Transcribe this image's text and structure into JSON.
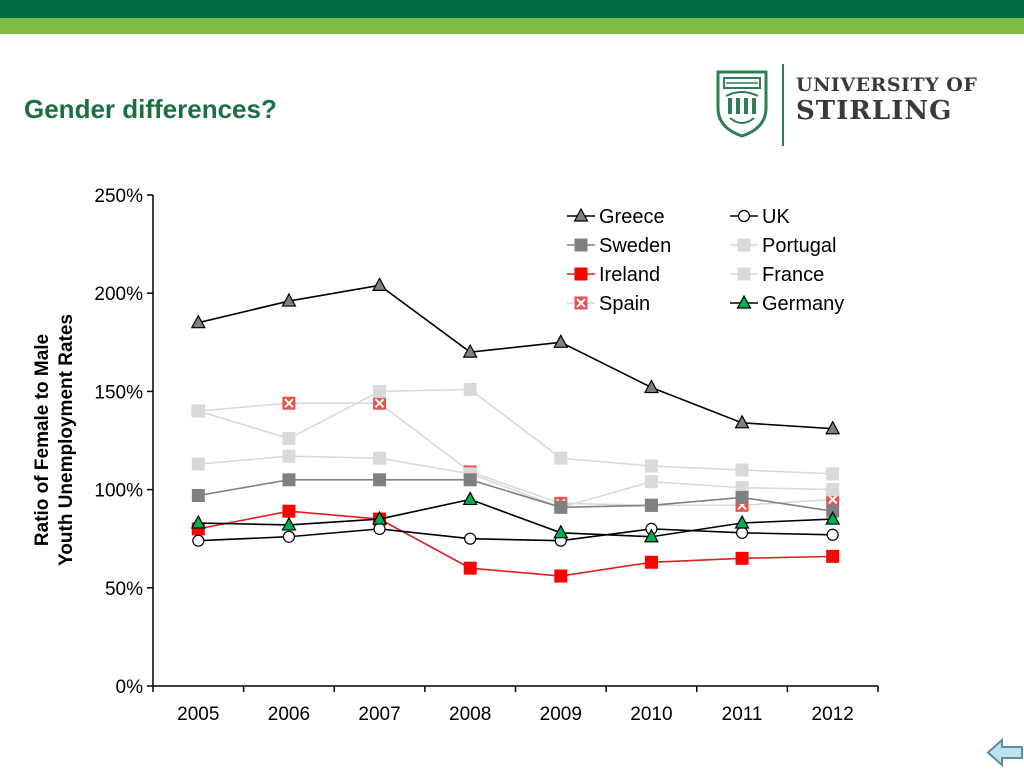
{
  "header": {
    "title": "Gender differences?",
    "colors": {
      "band_dark": "#006a43",
      "band_light": "#7dbb42",
      "title": "#1b7040"
    }
  },
  "logo": {
    "line1": "UNIVERSITY OF",
    "line2": "STIRLING",
    "crest_icon": "university-crest-icon"
  },
  "chart_data": {
    "type": "line",
    "title": "",
    "xlabel": "",
    "ylabel": "Ratio of Female to Male Youth Unemployment Rates",
    "ylim": [
      0,
      250
    ],
    "yticks": [
      "0%",
      "50%",
      "100%",
      "150%",
      "200%",
      "250%"
    ],
    "categories": [
      "2005",
      "2006",
      "2007",
      "2008",
      "2009",
      "2010",
      "2011",
      "2012"
    ],
    "grid": false,
    "legend_position": "top-right",
    "series": [
      {
        "name": "Greece",
        "color": "#000000",
        "marker": "triangle",
        "fill": "#808080",
        "values": [
          185,
          196,
          204,
          170,
          175,
          152,
          134,
          131
        ]
      },
      {
        "name": "Sweden",
        "color": "#808080",
        "marker": "square",
        "fill": "#808080",
        "values": [
          97,
          105,
          105,
          105,
          91,
          92,
          96,
          89
        ]
      },
      {
        "name": "Ireland",
        "color": "#e31e24",
        "marker": "square",
        "fill": "#ff0000",
        "values": [
          80,
          89,
          85,
          60,
          56,
          63,
          65,
          66
        ]
      },
      {
        "name": "Spain",
        "color": "#d9d9d9",
        "marker": "x-square",
        "fill": "#e8524f",
        "values": [
          140,
          144,
          144,
          109,
          93,
          92,
          92,
          95
        ]
      },
      {
        "name": "UK",
        "color": "#000000",
        "marker": "circle",
        "fill": "#ffffff",
        "values": [
          74,
          76,
          80,
          75,
          74,
          80,
          78,
          77
        ]
      },
      {
        "name": "Portugal",
        "color": "#d9d9d9",
        "marker": "square",
        "fill": "#d9d9d9",
        "values": [
          140,
          126,
          150,
          151,
          116,
          112,
          110,
          108
        ]
      },
      {
        "name": "France",
        "color": "#d9d9d9",
        "marker": "square",
        "fill": "#d9d9d9",
        "values": [
          113,
          117,
          116,
          108,
          91,
          104,
          101,
          100
        ]
      },
      {
        "name": "Germany",
        "color": "#000000",
        "marker": "triangle",
        "fill": "#00b050",
        "values": [
          83,
          82,
          85,
          95,
          78,
          76,
          83,
          85
        ]
      }
    ]
  },
  "nav": {
    "back_icon": "back-arrow-icon"
  }
}
